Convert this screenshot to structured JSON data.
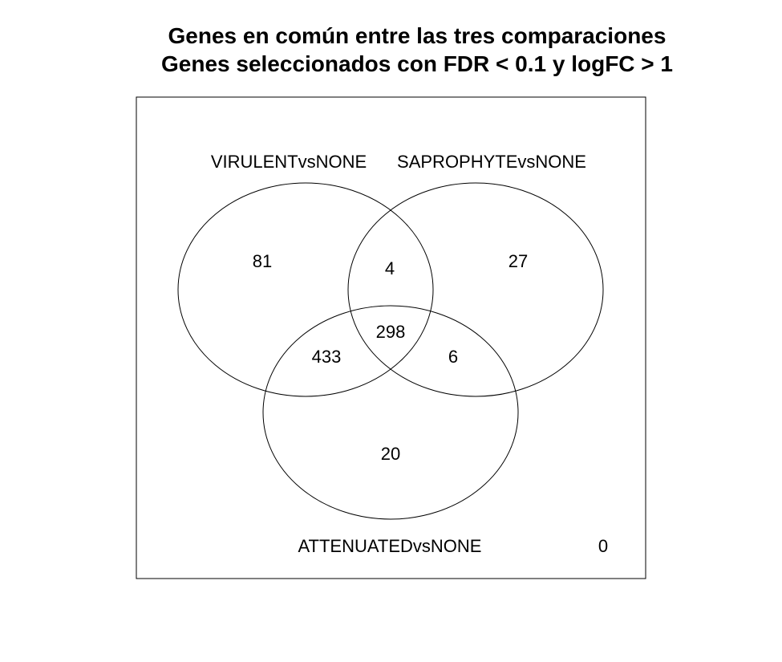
{
  "title": {
    "line1": "Genes en común entre las tres comparaciones",
    "line2": "Genes seleccionados con FDR < 0.1 y logFC > 1"
  },
  "sets": {
    "a": "VIRULENTvsNONE",
    "b": "SAPROPHYTEvsNONE",
    "c": "ATTENUATEDvsNONE"
  },
  "counts": {
    "a_only": "81",
    "b_only": "27",
    "c_only": "20",
    "ab_only": "4",
    "ac_only": "433",
    "bc_only": "6",
    "abc": "298",
    "none": "0"
  },
  "colors": {
    "stroke": "#000000",
    "background": "#ffffff"
  }
}
